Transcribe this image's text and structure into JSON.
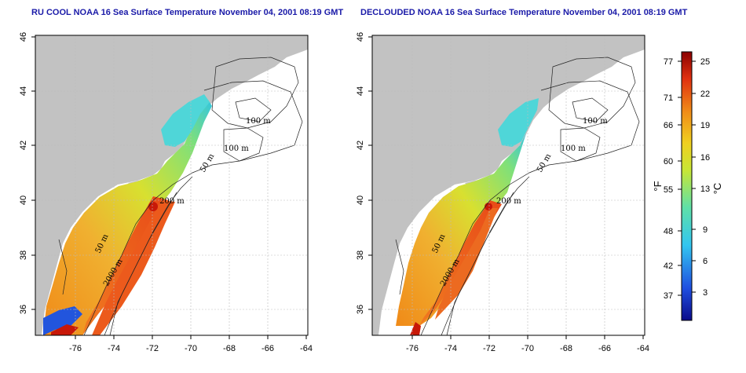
{
  "panels": [
    {
      "id": "left",
      "title": "RU COOL NOAA 16 Sea Surface Temperature November 04, 2001 08:19 GMT",
      "x_ticks": [
        "-76",
        "-74",
        "-72",
        "-70",
        "-68",
        "-66",
        "-64"
      ],
      "y_ticks": [
        "36",
        "38",
        "40",
        "42",
        "44",
        "46"
      ],
      "contour_labels": [
        "100 m",
        "100 m",
        "50 m",
        "200 m",
        "50 m",
        "2000 m"
      ]
    },
    {
      "id": "right",
      "title": "DECLOUDED NOAA 16 Sea Surface Temperature November 04, 2001 08:19 GMT",
      "x_ticks": [
        "-76",
        "-74",
        "-72",
        "-70",
        "-68",
        "-66",
        "-64"
      ],
      "y_ticks": [
        "36",
        "38",
        "40",
        "42",
        "44",
        "46"
      ],
      "contour_labels": [
        "100 m",
        "100 m",
        "50 m",
        "200 m",
        "50 m",
        "2000 m"
      ]
    }
  ],
  "colorbar": {
    "fahrenheit_ticks": [
      "77",
      "71",
      "66",
      "60",
      "55",
      "48",
      "42",
      "37"
    ],
    "celsius_ticks": [
      "25",
      "22",
      "19",
      "16",
      "13",
      "9",
      "6",
      "3"
    ],
    "fahrenheit_label": "°F",
    "celsius_label": "°C",
    "colors": [
      "#0b0b8a",
      "#1f4fe0",
      "#33c6f0",
      "#5fe0a8",
      "#c8e635",
      "#f0d020",
      "#f08a18",
      "#e03010",
      "#8a0000"
    ]
  },
  "colors": {
    "land": "#c2c2c2",
    "ocean": "#ffffff",
    "title": "#1a1aa8"
  }
}
